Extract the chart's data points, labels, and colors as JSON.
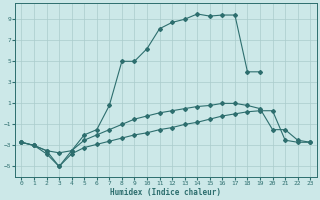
{
  "xlabel": "Humidex (Indice chaleur)",
  "xlim": [
    -0.5,
    23.5
  ],
  "ylim": [
    -6.0,
    10.5
  ],
  "yticks": [
    9,
    7,
    5,
    3,
    1,
    -1,
    -3,
    -5
  ],
  "xticks": [
    0,
    1,
    2,
    3,
    4,
    5,
    6,
    7,
    8,
    9,
    10,
    11,
    12,
    13,
    14,
    15,
    16,
    17,
    18,
    19,
    20,
    21,
    22,
    23
  ],
  "bg_color": "#cce8e8",
  "grid_color": "#aacccc",
  "line_color": "#2d6e6e",
  "curve1_x": [
    0,
    1,
    2,
    3,
    4,
    5,
    6,
    7,
    8,
    9,
    10,
    11,
    12,
    13,
    14,
    15,
    16,
    17,
    18,
    19
  ],
  "curve1_y": [
    -2.7,
    -3.0,
    -3.5,
    -5.0,
    -3.5,
    -2.0,
    -1.5,
    0.8,
    5.0,
    5.0,
    6.2,
    8.1,
    8.7,
    9.0,
    9.5,
    9.3,
    9.4,
    9.4,
    4.0,
    4.0
  ],
  "curve2_x": [
    0,
    1,
    2,
    3,
    4,
    5,
    6,
    7,
    8,
    9,
    10,
    11,
    12,
    13,
    14,
    15,
    16,
    17,
    18,
    19,
    20,
    21,
    22,
    23
  ],
  "curve2_y": [
    -2.7,
    -3.0,
    -3.5,
    -3.7,
    -3.5,
    -2.5,
    -2.0,
    -1.5,
    -1.0,
    -0.5,
    -0.2,
    0.1,
    0.3,
    0.5,
    0.7,
    0.8,
    1.0,
    1.0,
    0.8,
    0.5,
    -1.5,
    -1.5,
    -2.5,
    -2.7
  ],
  "curve3_x": [
    0,
    1,
    2,
    3,
    4,
    5,
    6,
    7,
    8,
    9,
    10,
    11,
    12,
    13,
    14,
    15,
    16,
    17,
    18,
    19,
    20,
    21,
    22,
    23
  ],
  "curve3_y": [
    -2.7,
    -3.0,
    -3.8,
    -5.0,
    -3.8,
    -3.2,
    -2.9,
    -2.6,
    -2.3,
    -2.0,
    -1.8,
    -1.5,
    -1.3,
    -1.0,
    -0.8,
    -0.5,
    -0.2,
    0.0,
    0.2,
    0.3,
    0.3,
    -2.5,
    -2.7,
    -2.7
  ]
}
